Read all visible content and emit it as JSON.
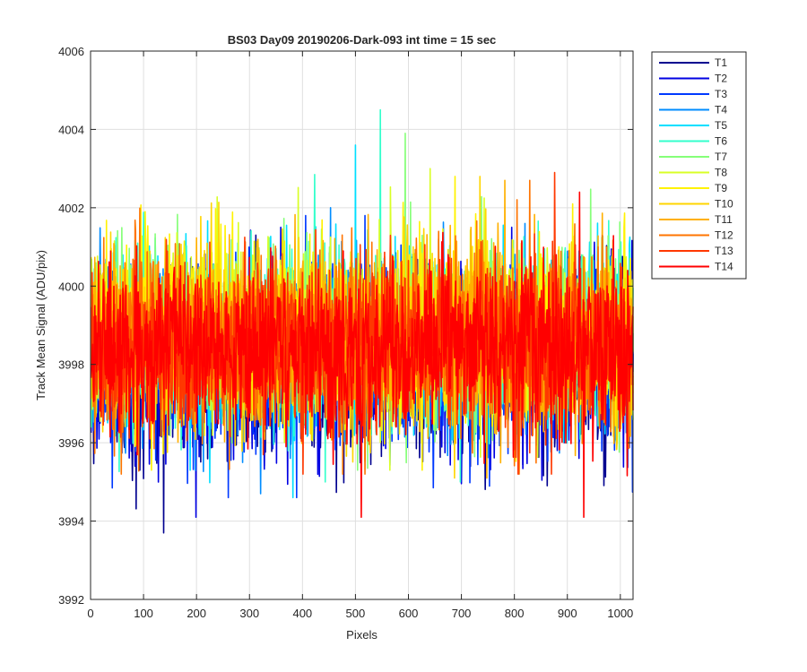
{
  "chart_data": {
    "type": "line",
    "title": "BS03 Day09 20190206-Dark-093 int time = 15 sec",
    "xlabel": "Pixels",
    "ylabel": "Track Mean Signal (ADU/pix)",
    "xlim": [
      0,
      1024
    ],
    "ylim": [
      3992,
      4006
    ],
    "xticks": [
      0,
      100,
      200,
      300,
      400,
      500,
      600,
      700,
      800,
      900,
      1000
    ],
    "yticks": [
      3992,
      3994,
      3996,
      3998,
      4000,
      4002,
      4004,
      4006
    ],
    "grid": true,
    "legend_position": "outside-top-right",
    "x": {
      "start": 1,
      "end": 1024,
      "step": 1
    },
    "series": [
      {
        "name": "T1",
        "color": "#00008F",
        "mean": 3997.9,
        "std": 1.15,
        "min": 3993.7,
        "max": 4001.3
      },
      {
        "name": "T2",
        "color": "#0000E2",
        "mean": 3998.0,
        "std": 1.1,
        "min": 3994.1,
        "max": 4001.5
      },
      {
        "name": "T3",
        "color": "#0039FF",
        "mean": 3998.2,
        "std": 1.1,
        "min": 3994.6,
        "max": 4001.8
      },
      {
        "name": "T4",
        "color": "#008CFF",
        "mean": 3998.4,
        "std": 1.1,
        "min": 3994.7,
        "max": 4002.0
      },
      {
        "name": "T5",
        "color": "#00DFFF",
        "mean": 3998.6,
        "std": 1.1,
        "min": 3994.6,
        "max": 4003.6
      },
      {
        "name": "T6",
        "color": "#33FFCC",
        "mean": 3998.7,
        "std": 1.1,
        "min": 3995.0,
        "max": 4004.5
      },
      {
        "name": "T7",
        "color": "#86FF79",
        "mean": 3998.8,
        "std": 1.1,
        "min": 3995.3,
        "max": 4003.9
      },
      {
        "name": "T8",
        "color": "#D9FF26",
        "mean": 3998.8,
        "std": 1.1,
        "min": 3995.3,
        "max": 4003.0
      },
      {
        "name": "T9",
        "color": "#FFF200",
        "mean": 3998.8,
        "std": 1.1,
        "min": 3995.3,
        "max": 4002.8
      },
      {
        "name": "T10",
        "color": "#FFD500",
        "mean": 3998.7,
        "std": 1.1,
        "min": 3995.1,
        "max": 4002.8
      },
      {
        "name": "T11",
        "color": "#FFB000",
        "mean": 3998.6,
        "std": 1.1,
        "min": 3995.1,
        "max": 4002.7
      },
      {
        "name": "T12",
        "color": "#FF7400",
        "mean": 3998.6,
        "std": 1.1,
        "min": 3995.2,
        "max": 4002.7
      },
      {
        "name": "T13",
        "color": "#FF3800",
        "mean": 3998.5,
        "std": 1.1,
        "min": 3995.2,
        "max": 4002.9
      },
      {
        "name": "T14",
        "color": "#FF0000",
        "mean": 3998.4,
        "std": 1.1,
        "min": 3994.1,
        "max": 4002.4
      }
    ]
  }
}
